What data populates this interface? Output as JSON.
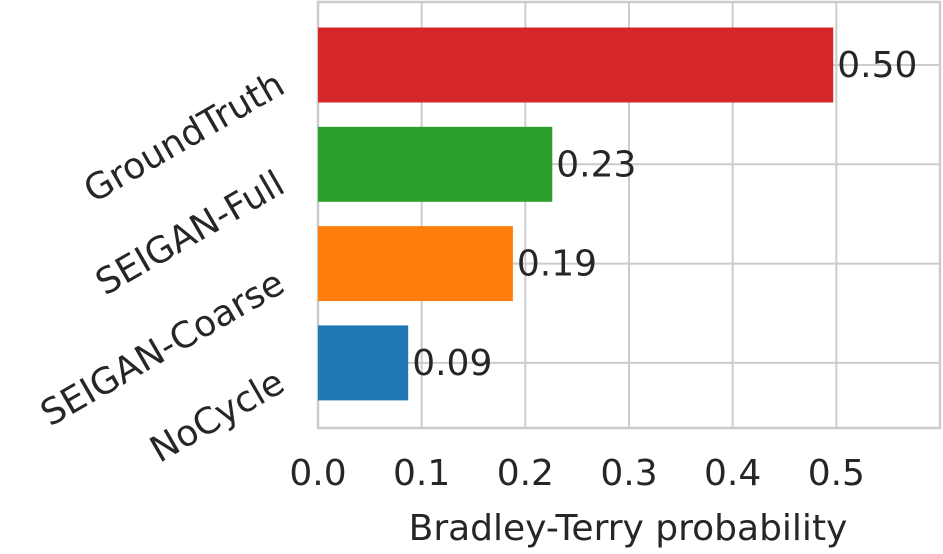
{
  "chart_data": {
    "type": "barh",
    "xlabel": "Bradley-Terry probability",
    "categories": [
      "GroundTruth",
      "SEIGAN-Full",
      "SEIGAN-Coarse",
      "NoCycle"
    ],
    "values": [
      0.497,
      0.226,
      0.188,
      0.087
    ],
    "value_labels": [
      "0.50",
      "0.23",
      "0.19",
      "0.09"
    ],
    "colors": [
      "#d62728",
      "#2ca02c",
      "#ff7f0e",
      "#1f77b4"
    ],
    "xlim": [
      0,
      0.6
    ],
    "xticks": [
      {
        "value": 0,
        "label": "0.0"
      },
      {
        "value": 0.1,
        "label": "0.1"
      },
      {
        "value": 0.2,
        "label": "0.2"
      },
      {
        "value": 0.3,
        "label": "0.3"
      },
      {
        "value": 0.4,
        "label": "0.4"
      },
      {
        "value": 0.5,
        "label": "0.5"
      }
    ],
    "grid": true
  }
}
